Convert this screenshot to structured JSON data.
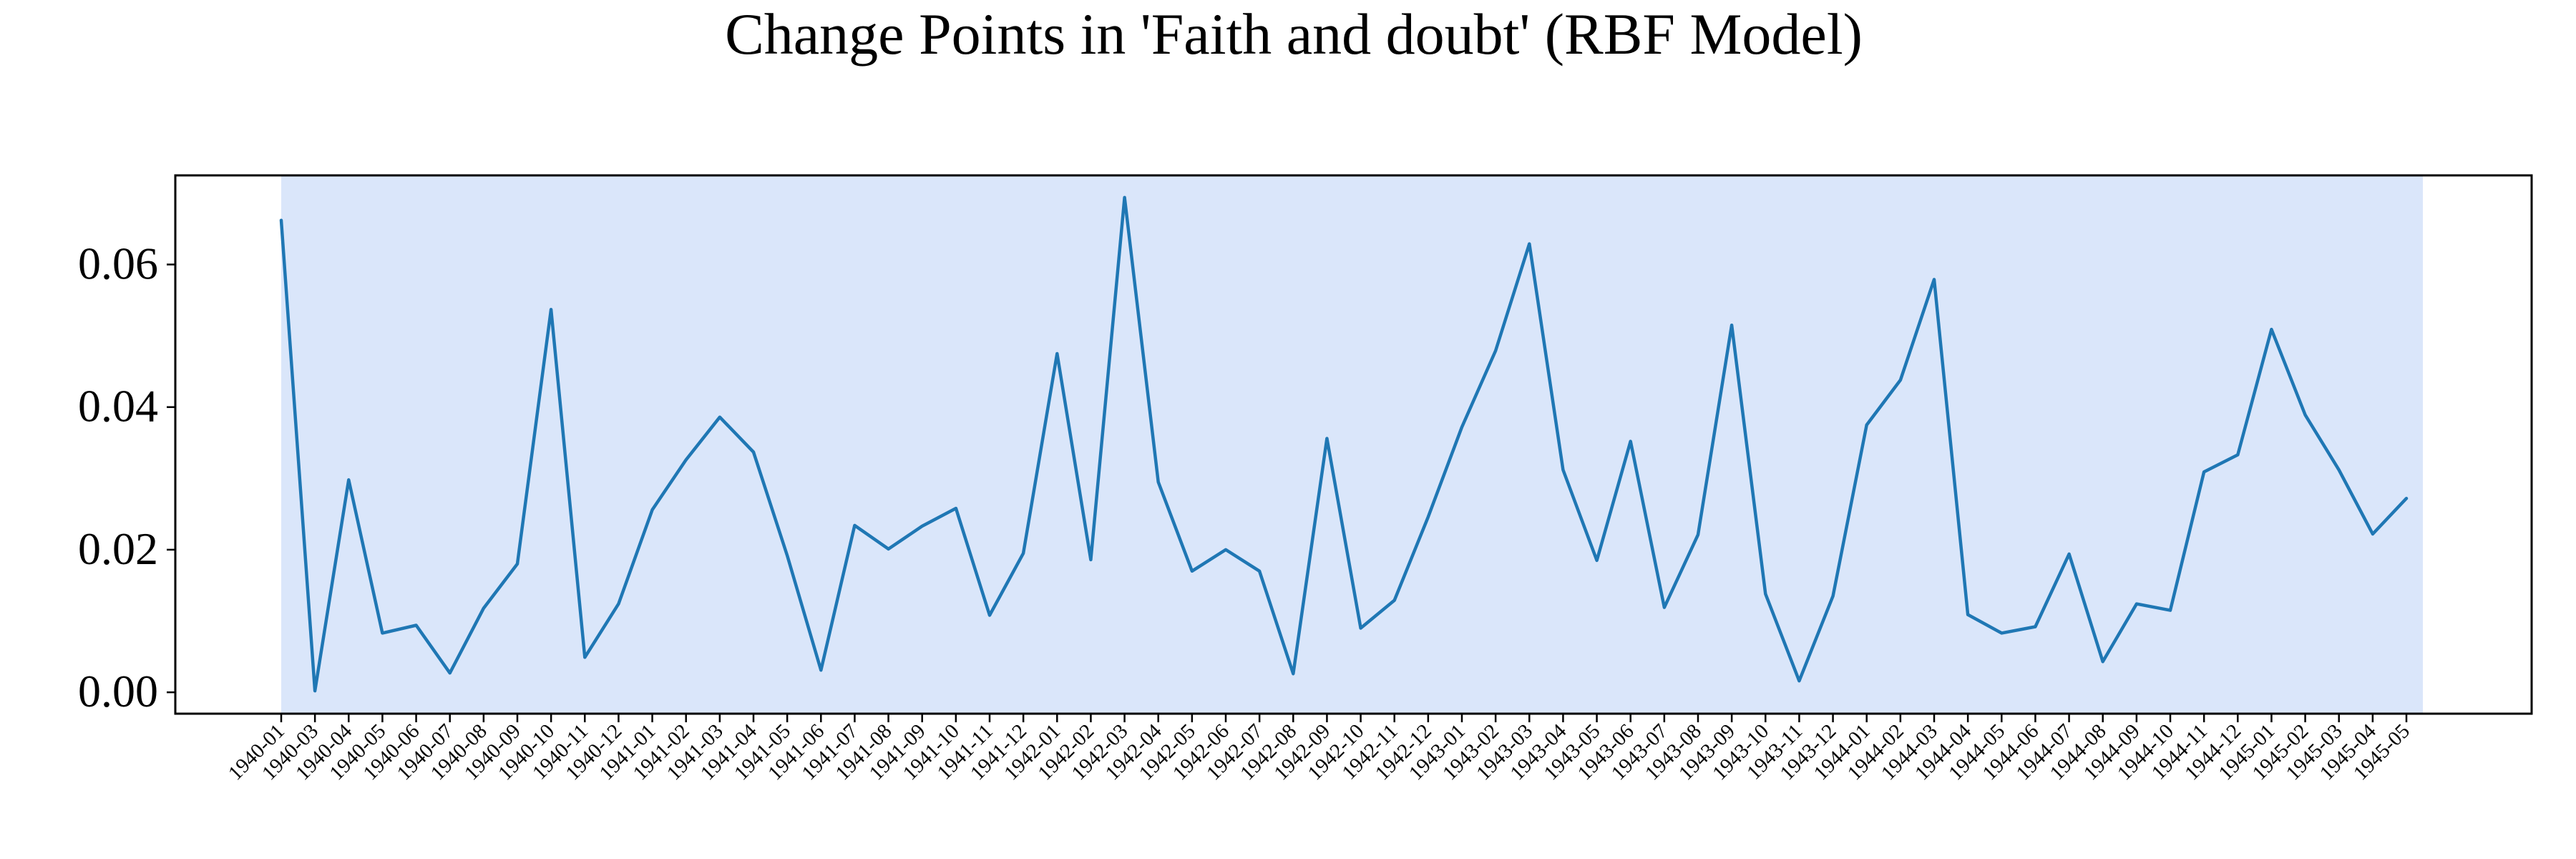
{
  "chart_data": {
    "type": "line",
    "title": "Change Points in 'Faith and doubt' (RBF Model)",
    "xlabel": "",
    "ylabel": "",
    "ylim": [
      -0.003,
      0.0725
    ],
    "yticks": [
      "0.00",
      "0.02",
      "0.04",
      "0.06"
    ],
    "grid": false,
    "categories": [
      "1940-01",
      "1940-03",
      "1940-04",
      "1940-05",
      "1940-06",
      "1940-07",
      "1940-08",
      "1940-09",
      "1940-10",
      "1940-11",
      "1940-12",
      "1941-01",
      "1941-02",
      "1941-03",
      "1941-04",
      "1941-05",
      "1941-06",
      "1941-07",
      "1941-08",
      "1941-09",
      "1941-10",
      "1941-11",
      "1941-12",
      "1942-01",
      "1942-02",
      "1942-03",
      "1942-04",
      "1942-05",
      "1942-06",
      "1942-07",
      "1942-08",
      "1942-09",
      "1942-10",
      "1942-11",
      "1942-12",
      "1943-01",
      "1943-02",
      "1943-03",
      "1943-04",
      "1943-05",
      "1943-06",
      "1943-07",
      "1943-08",
      "1943-09",
      "1943-10",
      "1943-11",
      "1943-12",
      "1944-01",
      "1944-02",
      "1944-03",
      "1944-04",
      "1944-05",
      "1944-06",
      "1944-07",
      "1944-08",
      "1944-09",
      "1944-10",
      "1944-11",
      "1944-12",
      "1945-01",
      "1945-02",
      "1945-03",
      "1945-04",
      "1945-05"
    ],
    "series": [
      {
        "values": [
          0.0662,
          0.0002,
          0.0298,
          0.0083,
          0.0094,
          0.0027,
          0.0118,
          0.018,
          0.0537,
          0.0049,
          0.0124,
          0.0256,
          0.0326,
          0.0386,
          0.0337,
          0.0192,
          0.0031,
          0.0234,
          0.0201,
          0.0233,
          0.0258,
          0.0108,
          0.0195,
          0.0475,
          0.0186,
          0.0694,
          0.0295,
          0.017,
          0.02,
          0.017,
          0.0026,
          0.0356,
          0.009,
          0.0129,
          0.0246,
          0.0372,
          0.0479,
          0.0629,
          0.0312,
          0.0185,
          0.0352,
          0.0119,
          0.0221,
          0.0515,
          0.0138,
          0.0016,
          0.0135,
          0.0375,
          0.0438,
          0.0579,
          0.0109,
          0.0083,
          0.0092,
          0.0194,
          0.0043,
          0.0124,
          0.0115,
          0.0309,
          0.0333,
          0.0509,
          0.0389,
          0.0312,
          0.0222,
          0.0272
        ],
        "color": "#1f77b4"
      }
    ],
    "highlight_region": {
      "from": "1940-01",
      "to": "1945-05+",
      "color": "#dae6fa"
    }
  }
}
